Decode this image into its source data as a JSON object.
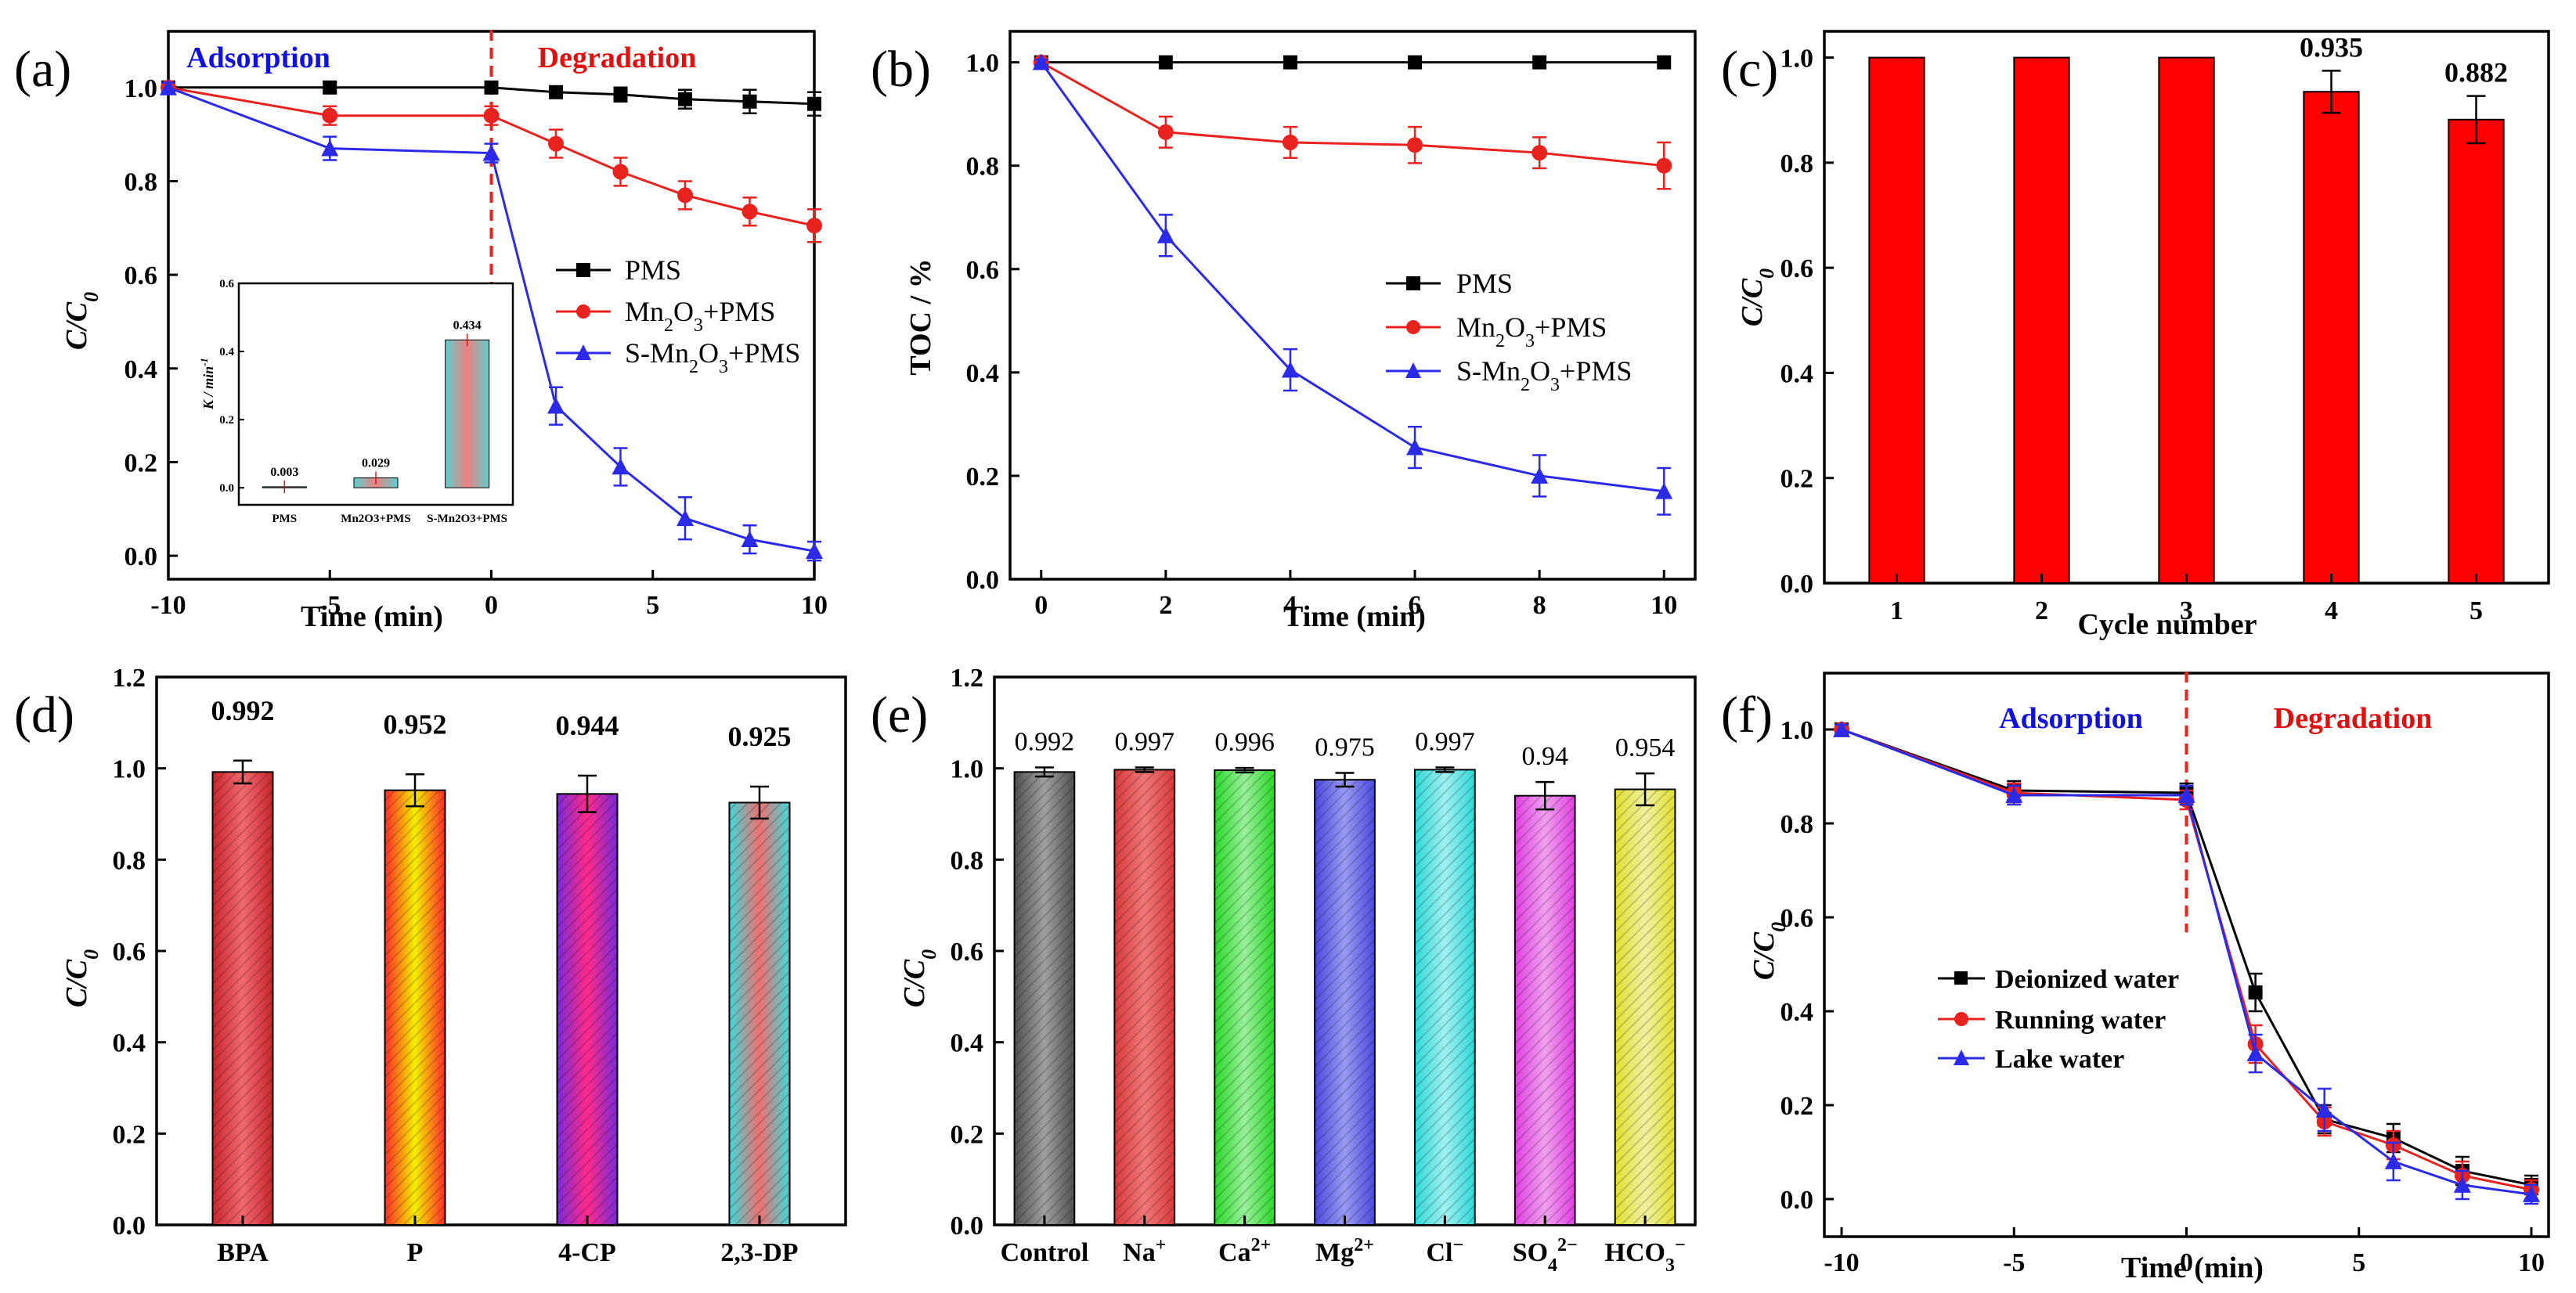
{
  "colors": {
    "pms": "#000000",
    "mn2o3": "#e8231f",
    "smn2o3": "#2a2ae8",
    "bar_red": "#ff0000",
    "dashed_line": "#e8231f",
    "annot_blue": "#1010e0",
    "annot_red": "#e01010"
  },
  "chart_data": [
    {
      "id": "a",
      "panel_label": "(a)",
      "type": "line",
      "xlabel": "Time (min)",
      "ylabel": "C/C",
      "ylabel_sub": "0",
      "xlim": [
        -10,
        10
      ],
      "ylim": [
        -0.05,
        1.12
      ],
      "xticks": [
        -10,
        -5,
        0,
        5,
        10
      ],
      "xtick_labels": [
        "-10",
        "-5",
        "0",
        "5",
        "10"
      ],
      "yticks": [
        0.0,
        0.2,
        0.4,
        0.6,
        0.8,
        1.0
      ],
      "ytick_labels": [
        "0.0",
        "0.2",
        "0.4",
        "0.6",
        "0.8",
        "1.0"
      ],
      "annotations": {
        "left": "Adsorption",
        "right": "Degradation"
      },
      "vline_x": 0,
      "legend": [
        {
          "label": "PMS",
          "main": "PMS",
          "sub": "",
          "tail": ""
        },
        {
          "label": "Mn2O3+PMS",
          "main": "Mn",
          "sub": "2",
          "mid": "O",
          "sub2": "3",
          "tail": "+PMS"
        },
        {
          "label": "S-Mn2O3+PMS",
          "main": "S-Mn",
          "sub": "2",
          "mid": "O",
          "sub2": "3",
          "tail": "+PMS"
        }
      ],
      "series": [
        {
          "name": "PMS",
          "marker": "square",
          "x": [
            -10,
            -5,
            0,
            2,
            4,
            6,
            8,
            10
          ],
          "y": [
            1.0,
            1.0,
            1.0,
            0.99,
            0.985,
            0.975,
            0.97,
            0.965
          ],
          "err": [
            0.01,
            0.01,
            0.01,
            0.01,
            0.015,
            0.02,
            0.025,
            0.025
          ]
        },
        {
          "name": "Mn2O3+PMS",
          "marker": "circle",
          "x": [
            -10,
            -5,
            0,
            2,
            4,
            6,
            8,
            10
          ],
          "y": [
            1.0,
            0.94,
            0.94,
            0.88,
            0.82,
            0.77,
            0.735,
            0.705
          ],
          "err": [
            0.01,
            0.02,
            0.02,
            0.03,
            0.03,
            0.03,
            0.03,
            0.035
          ]
        },
        {
          "name": "S-Mn2O3+PMS",
          "marker": "triangle",
          "x": [
            -10,
            -5,
            0,
            2,
            4,
            6,
            8,
            10
          ],
          "y": [
            1.0,
            0.87,
            0.86,
            0.32,
            0.19,
            0.08,
            0.035,
            0.01
          ],
          "err": [
            0.01,
            0.025,
            0.02,
            0.04,
            0.04,
            0.045,
            0.03,
            0.02
          ]
        }
      ],
      "inset": {
        "type": "bar",
        "ylabel": "K / min",
        "ylabel_sup": "-1",
        "ylim": [
          -0.05,
          0.6
        ],
        "yticks": [
          0.0,
          0.2,
          0.4,
          0.6
        ],
        "ytick_labels": [
          "0.0",
          "0.2",
          "0.4",
          "0.6"
        ],
        "categories": [
          "PMS",
          "Mn2O3+PMS",
          "S-Mn2O3+PMS"
        ],
        "category_labels": [
          "PMS",
          "Mn2O3+PMS",
          "S-Mn2O3+PMS"
        ],
        "values": [
          0.003,
          0.029,
          0.434
        ],
        "value_labels": [
          "0.003",
          "0.029",
          "0.434"
        ]
      }
    },
    {
      "id": "b",
      "panel_label": "(b)",
      "type": "line",
      "xlabel": "Time (min)",
      "ylabel": "TOC / %",
      "xlim": [
        -0.5,
        10.5
      ],
      "ylim": [
        0.0,
        1.06
      ],
      "xticks": [
        0,
        2,
        4,
        6,
        8,
        10
      ],
      "xtick_labels": [
        "0",
        "2",
        "4",
        "6",
        "8",
        "10"
      ],
      "yticks": [
        0.0,
        0.2,
        0.4,
        0.6,
        0.8,
        1.0
      ],
      "ytick_labels": [
        "0.0",
        "0.2",
        "0.4",
        "0.6",
        "0.8",
        "1.0"
      ],
      "legend": [
        {
          "label": "PMS",
          "main": "PMS",
          "sub": "",
          "tail": ""
        },
        {
          "label": "Mn2O3+PMS",
          "main": "Mn",
          "sub": "2",
          "mid": "O",
          "sub2": "3",
          "tail": "+PMS"
        },
        {
          "label": "S-Mn2O3+PMS",
          "main": "S-Mn",
          "sub": "2",
          "mid": "O",
          "sub2": "3",
          "tail": "+PMS"
        }
      ],
      "series": [
        {
          "name": "PMS",
          "marker": "square",
          "x": [
            0,
            2,
            4,
            6,
            8,
            10
          ],
          "y": [
            1.0,
            1.0,
            1.0,
            1.0,
            1.0,
            1.0
          ],
          "err": [
            0,
            0,
            0,
            0,
            0,
            0
          ]
        },
        {
          "name": "Mn2O3+PMS",
          "marker": "circle",
          "x": [
            0,
            2,
            4,
            6,
            8,
            10
          ],
          "y": [
            1.0,
            0.865,
            0.845,
            0.84,
            0.825,
            0.8
          ],
          "err": [
            0.005,
            0.03,
            0.03,
            0.035,
            0.03,
            0.045
          ]
        },
        {
          "name": "S-Mn2O3+PMS",
          "marker": "triangle",
          "x": [
            0,
            2,
            4,
            6,
            8,
            10
          ],
          "y": [
            1.0,
            0.665,
            0.405,
            0.255,
            0.2,
            0.17
          ],
          "err": [
            0.005,
            0.04,
            0.04,
            0.04,
            0.04,
            0.045
          ]
        }
      ]
    },
    {
      "id": "c",
      "panel_label": "(c)",
      "type": "bar",
      "xlabel": "Cycle number",
      "ylabel": "C/C",
      "ylabel_sub": "0",
      "ylim": [
        0.0,
        1.05
      ],
      "yticks": [
        0.0,
        0.2,
        0.4,
        0.6,
        0.8,
        1.0
      ],
      "ytick_labels": [
        "0.0",
        "0.2",
        "0.4",
        "0.6",
        "0.8",
        "1.0"
      ],
      "categories": [
        "1",
        "2",
        "3",
        "4",
        "5"
      ],
      "values": [
        1.0,
        1.0,
        1.0,
        0.935,
        0.882
      ],
      "err": [
        0,
        0,
        0,
        0.04,
        0.045
      ],
      "value_labels": [
        "",
        "",
        "",
        "0.935",
        "0.882"
      ]
    },
    {
      "id": "d",
      "panel_label": "(d)",
      "type": "bar",
      "xlabel": "",
      "ylabel": "C/C",
      "ylabel_sub": "0",
      "ylim": [
        0.0,
        1.2
      ],
      "yticks": [
        0.0,
        0.2,
        0.4,
        0.6,
        0.8,
        1.0,
        1.2
      ],
      "ytick_labels": [
        "0.0",
        "0.2",
        "0.4",
        "0.6",
        "0.8",
        "1.0",
        "1.2"
      ],
      "categories": [
        "BPA",
        "P",
        "4-CP",
        "2,3-DP"
      ],
      "values": [
        0.992,
        0.952,
        0.944,
        0.925
      ],
      "err": [
        0.025,
        0.035,
        0.04,
        0.035
      ],
      "value_labels": [
        "0.992",
        "0.952",
        "0.944",
        "0.925"
      ],
      "bar_colors": [
        [
          "#c8262e",
          "#f06a6e"
        ],
        [
          "#ff2a2a",
          "#f4f000"
        ],
        [
          "#7a2ad8",
          "#ff2a8a"
        ],
        [
          "#40d8d8",
          "#f07070"
        ]
      ]
    },
    {
      "id": "e",
      "panel_label": "(e)",
      "type": "bar",
      "xlabel": "",
      "ylabel": "C/C",
      "ylabel_sub": "0",
      "ylim": [
        0.0,
        1.2
      ],
      "yticks": [
        0.0,
        0.2,
        0.4,
        0.6,
        0.8,
        1.0,
        1.2
      ],
      "ytick_labels": [
        "0.0",
        "0.2",
        "0.4",
        "0.6",
        "0.8",
        "1.0",
        "1.2"
      ],
      "categories": [
        "Control",
        "Na+",
        "Ca2+",
        "Mg2+",
        "Cl−",
        "SO42−",
        "HCO3−"
      ],
      "category_parts": [
        {
          "base": "Control",
          "sub": "",
          "sup": ""
        },
        {
          "base": "Na",
          "sub": "",
          "sup": "+"
        },
        {
          "base": "Ca",
          "sub": "",
          "sup": "2+"
        },
        {
          "base": "Mg",
          "sub": "",
          "sup": "2+"
        },
        {
          "base": "Cl",
          "sub": "",
          "sup": "−"
        },
        {
          "base": "SO",
          "sub": "4",
          "sup": "2−"
        },
        {
          "base": "HCO",
          "sub": "3",
          "sup": "−"
        }
      ],
      "values": [
        0.992,
        0.997,
        0.996,
        0.975,
        0.997,
        0.94,
        0.954
      ],
      "err": [
        0.01,
        0.005,
        0.005,
        0.015,
        0.005,
        0.03,
        0.035
      ],
      "value_labels": [
        "0.992",
        "0.997",
        "0.996",
        "0.975",
        "0.997",
        "0.94",
        "0.954"
      ],
      "bar_colors": [
        [
          "#505050",
          "#a0a0a0"
        ],
        [
          "#d83a3a",
          "#f07878"
        ],
        [
          "#2ad82a",
          "#9af09a"
        ],
        [
          "#4a4ae0",
          "#9a9af0"
        ],
        [
          "#30d8d8",
          "#a0f0f0"
        ],
        [
          "#e040e0",
          "#f0a0f0"
        ],
        [
          "#e0e030",
          "#f0f0a0"
        ]
      ]
    },
    {
      "id": "f",
      "panel_label": "(f)",
      "type": "line",
      "xlabel": "Time (min)",
      "ylabel": "C/C",
      "ylabel_sub": "0",
      "xlim": [
        -10.5,
        10.5
      ],
      "ylim": [
        -0.08,
        1.12
      ],
      "xticks": [
        -10,
        -5,
        0,
        5,
        10
      ],
      "xtick_labels": [
        "-10",
        "-5",
        "0",
        "5",
        "10"
      ],
      "yticks": [
        0.0,
        0.2,
        0.4,
        0.6,
        0.8,
        1.0
      ],
      "ytick_labels": [
        "0.0",
        "0.2",
        "0.4",
        "0.6",
        "0.8",
        "1.0"
      ],
      "annotations": {
        "left": "Adsorption",
        "right": "Degradation"
      },
      "vline_x": 0,
      "legend": [
        {
          "label": "Deionized water"
        },
        {
          "label": "Running water"
        },
        {
          "label": "Lake water"
        }
      ],
      "series": [
        {
          "name": "Deionized water",
          "marker": "square",
          "x": [
            -10,
            -5,
            0,
            2,
            4,
            6,
            8,
            10
          ],
          "y": [
            1.0,
            0.87,
            0.865,
            0.44,
            0.17,
            0.13,
            0.06,
            0.03
          ],
          "err": [
            0.01,
            0.02,
            0.02,
            0.04,
            0.03,
            0.03,
            0.03,
            0.02
          ]
        },
        {
          "name": "Running water",
          "marker": "circle",
          "x": [
            -10,
            -5,
            0,
            2,
            4,
            6,
            8,
            10
          ],
          "y": [
            1.0,
            0.865,
            0.85,
            0.33,
            0.165,
            0.115,
            0.05,
            0.02
          ],
          "err": [
            0.01,
            0.02,
            0.02,
            0.04,
            0.03,
            0.03,
            0.03,
            0.02
          ]
        },
        {
          "name": "Lake water",
          "marker": "triangle",
          "x": [
            -10,
            -5,
            0,
            2,
            4,
            6,
            8,
            10
          ],
          "y": [
            1.0,
            0.86,
            0.86,
            0.31,
            0.19,
            0.08,
            0.03,
            0.01
          ],
          "err": [
            0.01,
            0.02,
            0.02,
            0.04,
            0.045,
            0.04,
            0.03,
            0.02
          ]
        }
      ]
    }
  ]
}
